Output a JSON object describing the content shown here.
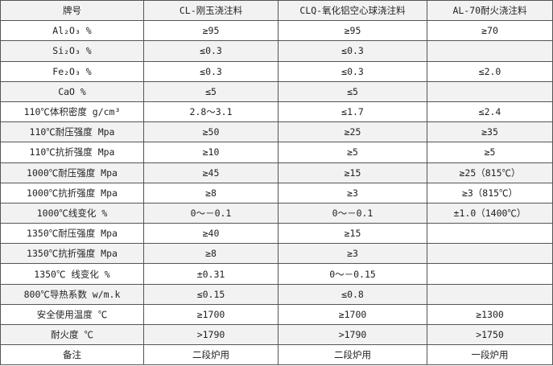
{
  "header": [
    "牌号",
    "CL-刚玉浇注料",
    "CLQ-氧化铝空心球浇注料",
    "AL-70耐火浇注料"
  ],
  "rows": [
    {
      "label": "Al₂O₃ %",
      "values": [
        "≥95",
        "≥95",
        "≥70"
      ]
    },
    {
      "label": "Si₂O₃ %",
      "values": [
        "≤0.3",
        "≤0.3",
        ""
      ]
    },
    {
      "label": "Fe₂O₃ %",
      "values": [
        "≤0.3",
        "≤0.3",
        "≤2.0"
      ]
    },
    {
      "label": "CaO %",
      "values": [
        "≤5",
        "≤5",
        ""
      ]
    },
    {
      "label": "110℃体积密度 g/cm³",
      "values": [
        "2.8～3.1",
        "≤1.7",
        "≤2.4"
      ]
    },
    {
      "label": "110℃耐压强度 Mpa",
      "values": [
        "≥50",
        "≥25",
        "≥35"
      ]
    },
    {
      "label": "110℃抗折强度 Mpa",
      "values": [
        "≥10",
        "≥5",
        "≥5"
      ]
    },
    {
      "label": "1000℃耐压强度 Mpa",
      "values": [
        "≥45",
        "≥15",
        "≥25（815℃）"
      ]
    },
    {
      "label": "1000℃抗折强度 Mpa",
      "values": [
        "≥8",
        "≥3",
        "≥3（815℃）"
      ]
    },
    {
      "label": "1000℃线变化 %",
      "values": [
        "0～－0.1",
        "0～－0.1",
        "±1.0（1400℃）"
      ]
    },
    {
      "label": "1350℃耐压强度 Mpa",
      "values": [
        "≥40",
        "≥15",
        ""
      ]
    },
    {
      "label": "1350℃抗折强度 Mpa",
      "values": [
        "≥8",
        "≥3",
        ""
      ]
    },
    {
      "label": "1350℃ 线变化  %",
      "values": [
        "±0.31",
        "0～－0.15",
        ""
      ]
    },
    {
      "label": "800℃导热系数 w/m.k",
      "values": [
        "≤0.15",
        "≤0.8",
        ""
      ]
    },
    {
      "label": "安全使用温度 ℃",
      "values": [
        "≥1700",
        "≥1700",
        "≥1300"
      ]
    },
    {
      "label": "耐火度 ℃",
      "values": [
        ">1790",
        ">1790",
        ">1750"
      ]
    },
    {
      "label": "备注",
      "values": [
        "二段炉用",
        "二段炉用",
        "一段炉用"
      ]
    }
  ]
}
